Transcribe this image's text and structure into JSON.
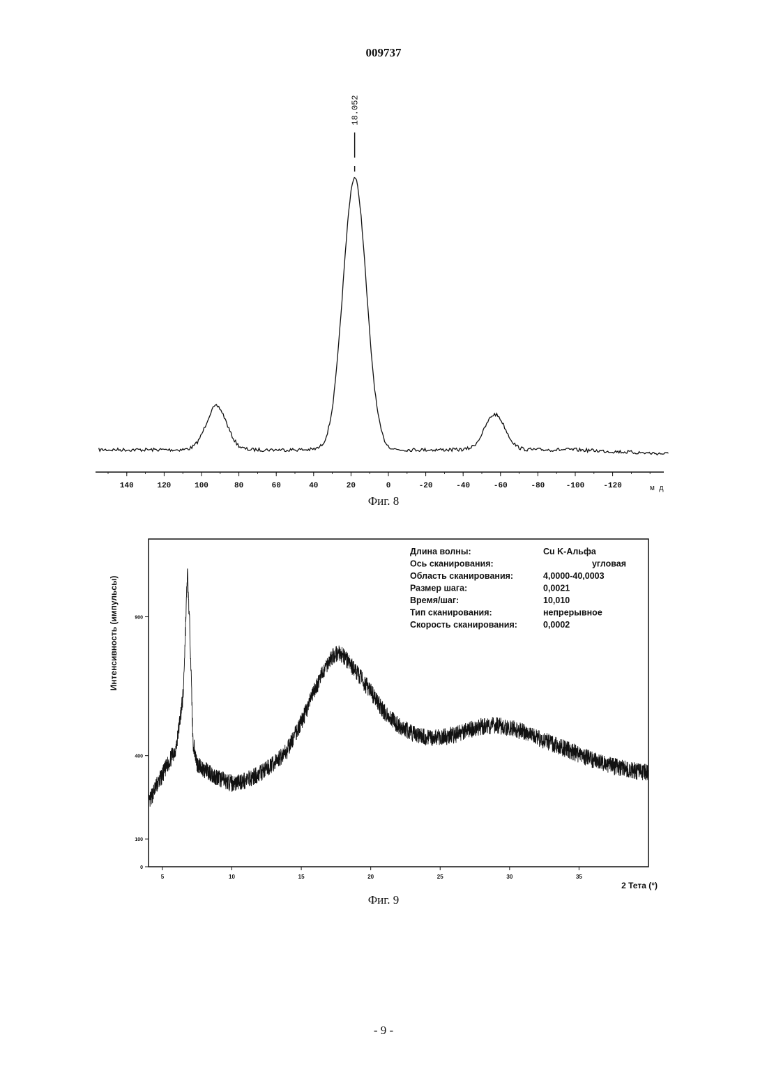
{
  "document": {
    "header_number": "009737",
    "page_number": "- 9 -"
  },
  "chart_data": [
    {
      "type": "line",
      "caption": "Фиг. 8",
      "x_unit": "м д",
      "x_axis_reversed": true,
      "xlim": [
        155,
        -150
      ],
      "x_ticks": [
        "140",
        "120",
        "100",
        "80",
        "60",
        "40",
        "20",
        "0",
        "-20",
        "-40",
        "-60",
        "-80",
        "-100",
        "-120"
      ],
      "peak_label": "18.052",
      "peaks": [
        {
          "x": 92,
          "height": 0.16
        },
        {
          "x": 18.052,
          "height": 1.0
        },
        {
          "x": -57,
          "height": 0.13
        }
      ],
      "grid": false,
      "legend": "none"
    },
    {
      "type": "line",
      "caption": "Фиг. 9",
      "xlabel": "2 Тета (°)",
      "ylabel": "Интенсивность (импульсы)",
      "xlim": [
        4.0,
        40.0
      ],
      "ylim": [
        0,
        1180
      ],
      "x_ticks": [
        "5",
        "10",
        "15",
        "20",
        "25",
        "30",
        "35"
      ],
      "y_ticks": [
        "0",
        "100",
        "400",
        "900"
      ],
      "x": [
        4.0,
        4.5,
        5.0,
        5.5,
        6.0,
        6.5,
        6.8,
        7.0,
        7.2,
        7.5,
        8.0,
        9.0,
        10.0,
        11.0,
        12.0,
        13.0,
        14.0,
        15.0,
        16.0,
        17.0,
        17.6,
        18.0,
        19.0,
        20.0,
        21.0,
        22.0,
        23.0,
        24.0,
        25.0,
        26.0,
        27.0,
        28.0,
        29.0,
        30.0,
        31.0,
        32.0,
        33.0,
        34.0,
        35.0,
        36.0,
        37.0,
        38.0,
        39.0,
        40.0
      ],
      "y": [
        225,
        285,
        330,
        380,
        430,
        620,
        1060,
        820,
        450,
        370,
        350,
        320,
        300,
        310,
        335,
        370,
        420,
        520,
        640,
        745,
        770,
        760,
        700,
        630,
        555,
        510,
        480,
        465,
        465,
        475,
        490,
        505,
        510,
        500,
        485,
        465,
        445,
        425,
        405,
        385,
        370,
        355,
        345,
        340
      ],
      "legend_block": [
        {
          "label": "Длина волны:",
          "value": "Cu K-Альфа"
        },
        {
          "label": "Ось сканирования:",
          "value": "угловая"
        },
        {
          "label": "Область сканирования:",
          "value": "4,0000-40,0003"
        },
        {
          "label": "Размер шага:",
          "value": "0,0021"
        },
        {
          "label": "Время/шаг:",
          "value": "10,010"
        },
        {
          "label": "Тип сканирования:",
          "value": "непрерывное"
        },
        {
          "label": "Скорость сканирования:",
          "value": "0,0002"
        }
      ],
      "grid": false,
      "legend": "top-right"
    }
  ],
  "colors": {
    "ink": "#111111",
    "paper": "#ffffff"
  }
}
